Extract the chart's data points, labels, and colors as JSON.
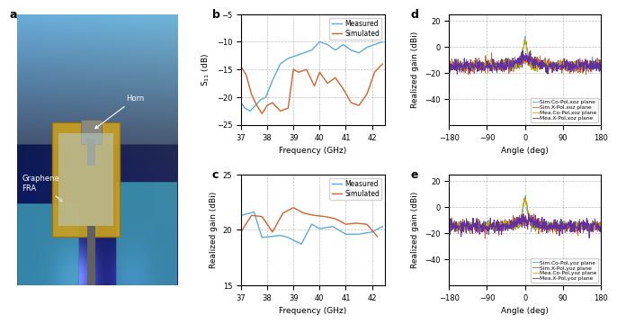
{
  "panel_b": {
    "label": "b",
    "ylabel": "S$_{11}$ (dB)",
    "xlabel": "Frequency (GHz)",
    "xlim": [
      37,
      42.5
    ],
    "ylim": [
      -25,
      -5
    ],
    "yticks": [
      -25,
      -20,
      -15,
      -10,
      -5
    ],
    "xticks": [
      37,
      38,
      39,
      40,
      41,
      42
    ],
    "measured_color": "#5aace0",
    "simulated_color": "#d4622a",
    "measured_x": [
      37.0,
      37.15,
      37.35,
      37.55,
      37.75,
      37.95,
      38.2,
      38.5,
      38.8,
      39.1,
      39.4,
      39.7,
      40.0,
      40.3,
      40.6,
      40.9,
      41.2,
      41.5,
      41.8,
      42.1,
      42.4
    ],
    "measured_y": [
      -21.0,
      -22.0,
      -22.5,
      -21.5,
      -20.5,
      -20.0,
      -17.0,
      -14.0,
      -13.0,
      -12.5,
      -12.0,
      -11.5,
      -10.0,
      -10.5,
      -11.5,
      -10.5,
      -11.5,
      -12.0,
      -11.0,
      -10.5,
      -10.0
    ],
    "simulated_x": [
      37.0,
      37.2,
      37.4,
      37.6,
      37.8,
      38.0,
      38.2,
      38.5,
      38.8,
      39.0,
      39.2,
      39.5,
      39.8,
      40.0,
      40.3,
      40.6,
      40.9,
      41.2,
      41.5,
      41.8,
      42.1,
      42.4
    ],
    "simulated_y": [
      -14.5,
      -16.0,
      -19.5,
      -21.5,
      -23.0,
      -21.5,
      -21.0,
      -22.5,
      -22.0,
      -15.0,
      -15.5,
      -15.0,
      -18.0,
      -15.5,
      -17.5,
      -16.5,
      -18.5,
      -21.0,
      -21.5,
      -19.5,
      -15.5,
      -14.0
    ]
  },
  "panel_c": {
    "label": "c",
    "ylabel": "Realized gain (dBi)",
    "xlabel": "Frequency (GHz)",
    "xlim": [
      37,
      42.5
    ],
    "ylim": [
      15,
      25
    ],
    "yticks": [
      15,
      20,
      25
    ],
    "xticks": [
      37,
      38,
      39,
      40,
      41,
      42
    ],
    "measured_color": "#5aace0",
    "simulated_color": "#d4622a",
    "measured_x": [
      37.0,
      37.5,
      37.8,
      38.2,
      38.5,
      38.8,
      39.3,
      39.7,
      40.0,
      40.5,
      41.0,
      41.5,
      42.0,
      42.4
    ],
    "measured_y": [
      21.3,
      21.6,
      19.3,
      19.4,
      19.5,
      19.3,
      18.7,
      20.5,
      20.1,
      20.3,
      19.6,
      19.6,
      19.8,
      20.3
    ],
    "simulated_x": [
      37.0,
      37.4,
      37.8,
      38.2,
      38.6,
      39.0,
      39.4,
      39.8,
      40.2,
      40.6,
      41.0,
      41.4,
      41.8,
      42.2
    ],
    "simulated_y": [
      19.8,
      21.3,
      21.2,
      19.8,
      21.5,
      22.0,
      21.5,
      21.3,
      21.2,
      21.0,
      20.5,
      20.6,
      20.5,
      19.4
    ]
  },
  "panel_d": {
    "label": "d",
    "ylabel": "Realized gain (dBi)",
    "xlabel": "Angle (deg)",
    "xlim": [
      -180,
      180
    ],
    "ylim": [
      -60,
      25
    ],
    "yticks": [
      -40,
      -20,
      0,
      20
    ],
    "xticks": [
      -180,
      -90,
      0,
      90,
      180
    ],
    "colors": [
      "#4fa8d8",
      "#d4622a",
      "#c8a800",
      "#6030a0"
    ],
    "legend": [
      "Sim.Co-Pol,xoz plane",
      "Sim.X-Pol,xoz plane",
      "Mea.Co-Pol,xoz plane",
      "Mea.X-Pol,xoz plane"
    ]
  },
  "panel_e": {
    "label": "e",
    "ylabel": "Realized gain (dBi)",
    "xlabel": "Angle (deg)",
    "xlim": [
      -180,
      180
    ],
    "ylim": [
      -60,
      25
    ],
    "yticks": [
      -40,
      -20,
      0,
      20
    ],
    "xticks": [
      -180,
      -90,
      0,
      90,
      180
    ],
    "colors": [
      "#4fa8d8",
      "#d4622a",
      "#c8a800",
      "#6030a0"
    ],
    "legend": [
      "Sim.Co-Pol,yoz plane",
      "Sim.X-Pol,yoz plane",
      "Mea.Co-Pol,yoz plane",
      "Mea.X-Pol,yoz plane"
    ]
  },
  "photo_label": "a"
}
